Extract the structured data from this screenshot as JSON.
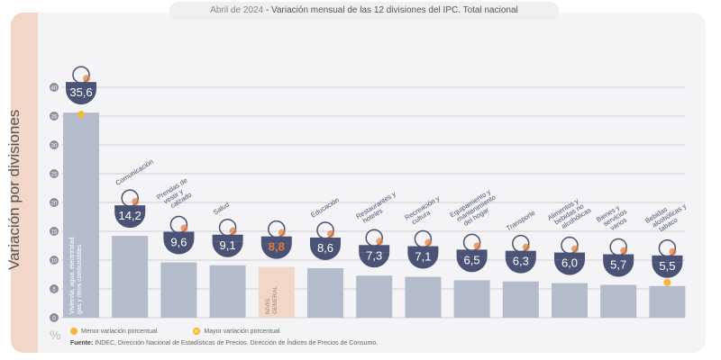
{
  "title": {
    "date": "Abril de 2024",
    "text": " - Variación mensual de las 12 divisiones del IPC. Total nacional"
  },
  "legend": {
    "min": "Menor variación porcentual",
    "max": "Mayor variación porcentual"
  },
  "source": {
    "label": "Fuente:",
    "text": " INDEC, Dirección Nacional de Estadísticas de Precios. Dirección de Índices de Precios de Consumo."
  },
  "unit": "%",
  "colors": {
    "bar": "#b4bccb",
    "general": "#f2d6c7",
    "badge": "#4a5275",
    "accent": "#e07b39",
    "dot": "#f4b73a"
  },
  "chart_data": {
    "type": "bar",
    "title": "Abril de 2024 - Variación mensual de las 12 divisiones del IPC. Total nacional",
    "ylabel": "Variación por divisiones",
    "xlabel": "",
    "ylim": [
      0,
      40
    ],
    "yticks": [
      0,
      5,
      10,
      15,
      20,
      25,
      30,
      35,
      40
    ],
    "categories": [
      "Vivienda, agua, electricidad, gas y otros combustibles",
      "Comunicación",
      "Prendas de vestir y calzado",
      "Salud",
      "Nivel general",
      "Educación",
      "Restaurantes y hoteles",
      "Recreación y cultura",
      "Equipamiento y mantenimiento del hogar",
      "Transporte",
      "Alimentos y bebidas no alcohólicas",
      "Bienes y servicios varios",
      "Bebidas alcohólicas y tabaco"
    ],
    "values": [
      35.6,
      14.2,
      9.6,
      9.1,
      8.8,
      8.6,
      7.3,
      7.1,
      6.5,
      6.3,
      6.0,
      5.7,
      5.5
    ],
    "value_labels": [
      "35,6",
      "14,2",
      "9,6",
      "9,1",
      "8,8",
      "8,6",
      "7,3",
      "7,1",
      "6,5",
      "6,3",
      "6,0",
      "5,7",
      "5,5"
    ],
    "highlight": {
      "max_index": 0,
      "min_index": 12,
      "general_index": 4
    },
    "grid": true
  }
}
